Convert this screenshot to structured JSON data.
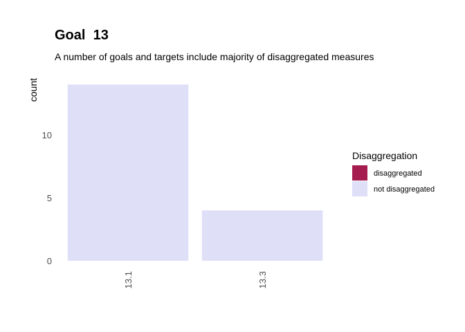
{
  "chart_data": {
    "type": "bar",
    "title": "Goal  13",
    "subtitle": "A number of goals and targets include majority of disaggregated measures",
    "xlabel": "",
    "ylabel": "count",
    "categories": [
      "13.1",
      "13.3"
    ],
    "series": [
      {
        "name": "disaggregated",
        "values": [
          0,
          0
        ]
      },
      {
        "name": "not disaggregated",
        "values": [
          14,
          4
        ]
      }
    ],
    "stacked": true,
    "ylim": [
      0,
      14
    ],
    "yticks": [
      0,
      5,
      10
    ],
    "grid": false,
    "legend": {
      "title": "Disaggregation",
      "position": "right",
      "items": [
        {
          "label": "disaggregated",
          "color": "#A51C4E"
        },
        {
          "label": "not disaggregated",
          "color": "#DFDFF8"
        }
      ]
    },
    "colors": {
      "disaggregated": "#A51C4E",
      "not disaggregated": "#DFDFF8"
    }
  }
}
